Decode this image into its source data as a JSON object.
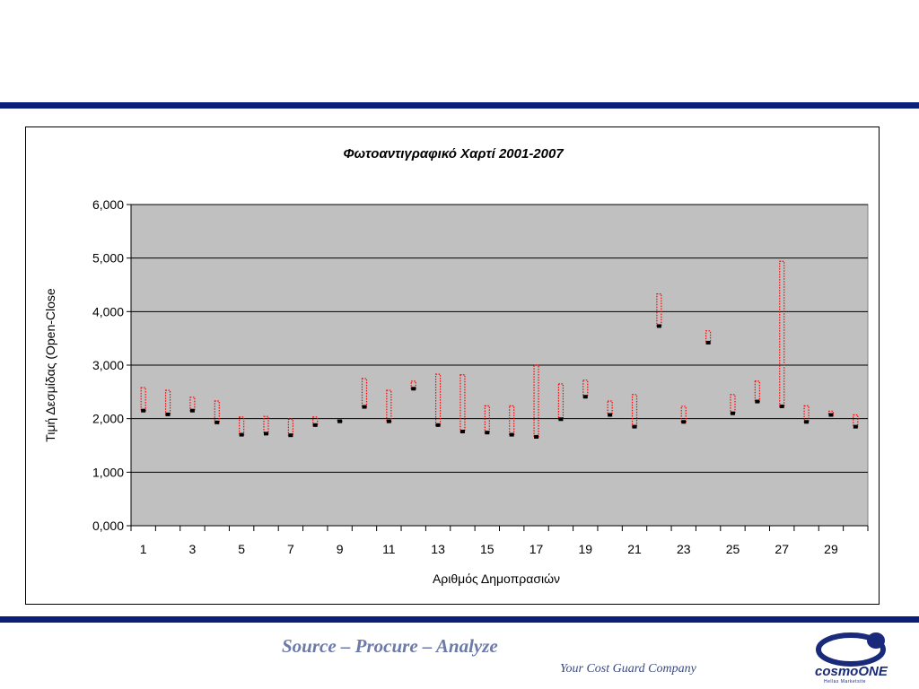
{
  "chart_data": {
    "type": "stock",
    "title": "Φωτοαντιγραφικό Χαρτί 2001-2007",
    "xlabel": "Αριθμός Δημοπρασιών",
    "ylabel": "Τιμή Δεσμίδας (Open-Close",
    "xlim": [
      1,
      30
    ],
    "ylim": [
      0,
      6000
    ],
    "y_ticks": [
      "0,000",
      "1,000",
      "2,000",
      "3,000",
      "4,000",
      "5,000",
      "6,000"
    ],
    "x_tick_labels": [
      "1",
      "3",
      "5",
      "7",
      "9",
      "11",
      "13",
      "15",
      "17",
      "19",
      "21",
      "23",
      "25",
      "27",
      "29"
    ],
    "grid": true,
    "series": [
      {
        "x": [
          1,
          2,
          3,
          4,
          5,
          6,
          7,
          8,
          9,
          10,
          11,
          12,
          13,
          14,
          15,
          16,
          17,
          18,
          19,
          20,
          21,
          22,
          23,
          24,
          25,
          26,
          27,
          28,
          29,
          30
        ],
        "open": [
          2580,
          2530,
          2400,
          2330,
          2030,
          2040,
          1990,
          2030,
          1980,
          2750,
          2530,
          2700,
          2830,
          2820,
          2240,
          2240,
          3000,
          2650,
          2720,
          2330,
          2450,
          4330,
          2230,
          3640,
          2450,
          2700,
          4940,
          2240,
          2140,
          2070
        ],
        "close": [
          2150,
          2080,
          2150,
          1930,
          1700,
          1720,
          1690,
          1880,
          1950,
          2220,
          1950,
          2560,
          1880,
          1760,
          1740,
          1700,
          1660,
          1990,
          2410,
          2070,
          1850,
          3730,
          1940,
          3420,
          2100,
          2320,
          2230,
          1940,
          2070,
          1850
        ]
      }
    ],
    "colors": {
      "range": "#ff0000",
      "close_marker": "#000000",
      "plot_bg": "#c0c0c0",
      "grid": "#000000"
    }
  },
  "footer": {
    "slogan": "Source – Procure – Analyze",
    "tagline": "Your Cost Guard Company"
  },
  "logo": {
    "text_a": "cosmo",
    "text_b": "ONE",
    "subtext": "Hellas Marketsite"
  }
}
